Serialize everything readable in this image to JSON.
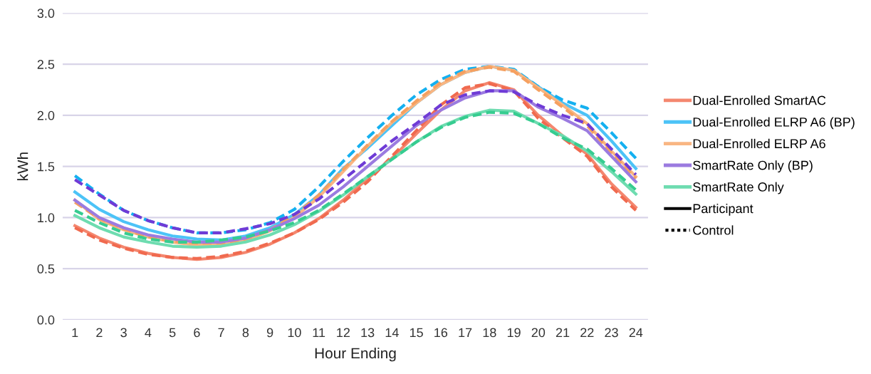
{
  "chart_data": {
    "type": "line",
    "xlabel": "Hour Ending",
    "ylabel": "kWh",
    "categories": [
      "1",
      "2",
      "3",
      "4",
      "5",
      "6",
      "7",
      "8",
      "9",
      "10",
      "11",
      "12",
      "13",
      "14",
      "15",
      "16",
      "17",
      "18",
      "19",
      "20",
      "21",
      "22",
      "23",
      "24"
    ],
    "ylim": [
      0,
      3
    ],
    "yticks": [
      {
        "value": 0,
        "label": "0.0"
      },
      {
        "value": 0.5,
        "label": "0.5"
      },
      {
        "value": 1,
        "label": "1.0"
      },
      {
        "value": 1.5,
        "label": "1.5"
      },
      {
        "value": 2,
        "label": "2.0"
      },
      {
        "value": 2.5,
        "label": "2.5"
      },
      {
        "value": 3,
        "label": "3.0"
      }
    ],
    "grid": "y",
    "legend": "right",
    "marker": "none",
    "series": [
      {
        "name": "Dual-Enrolled SmartAC",
        "color": "#f4876f",
        "line_style": "solid",
        "values": [
          0.92,
          0.8,
          0.71,
          0.65,
          0.61,
          0.59,
          0.61,
          0.66,
          0.74,
          0.85,
          0.99,
          1.17,
          1.38,
          1.58,
          1.82,
          2.05,
          2.24,
          2.32,
          2.25,
          2.0,
          1.8,
          1.62,
          1.33,
          1.1
        ]
      },
      {
        "color": "#f06a4f",
        "line_style": "dashed",
        "values": [
          0.9,
          0.78,
          0.7,
          0.64,
          0.61,
          0.6,
          0.62,
          0.67,
          0.75,
          0.85,
          0.98,
          1.15,
          1.35,
          1.6,
          1.85,
          2.1,
          2.27,
          2.31,
          2.24,
          1.97,
          1.78,
          1.6,
          1.3,
          1.07
        ]
      },
      {
        "name": "Dual-Enrolled ELRP A6 (BP)",
        "color": "#4cc3f7",
        "line_style": "solid",
        "values": [
          1.25,
          1.08,
          0.96,
          0.88,
          0.82,
          0.79,
          0.78,
          0.82,
          0.9,
          1.03,
          1.22,
          1.48,
          1.68,
          1.9,
          2.12,
          2.3,
          2.42,
          2.48,
          2.44,
          2.28,
          2.12,
          2.0,
          1.75,
          1.48
        ]
      },
      {
        "color": "#14b0f0",
        "line_style": "dashed",
        "values": [
          1.41,
          1.23,
          1.07,
          0.97,
          0.9,
          0.85,
          0.85,
          0.88,
          0.95,
          1.08,
          1.3,
          1.55,
          1.78,
          2.0,
          2.2,
          2.35,
          2.45,
          2.48,
          2.45,
          2.28,
          2.15,
          2.07,
          1.83,
          1.58
        ]
      },
      {
        "name": "Dual-Enrolled ELRP A6",
        "color": "#f9b683",
        "line_style": "solid",
        "values": [
          1.17,
          0.98,
          0.88,
          0.81,
          0.76,
          0.73,
          0.73,
          0.78,
          0.87,
          1.0,
          1.2,
          1.45,
          1.7,
          1.93,
          2.12,
          2.3,
          2.42,
          2.48,
          2.44,
          2.27,
          2.1,
          1.92,
          1.65,
          1.4
        ]
      },
      {
        "color": "#f5a060",
        "line_style": "dashed",
        "values": [
          1.15,
          0.99,
          0.89,
          0.81,
          0.77,
          0.75,
          0.75,
          0.79,
          0.88,
          1.02,
          1.22,
          1.47,
          1.71,
          1.94,
          2.14,
          2.32,
          2.43,
          2.47,
          2.43,
          2.25,
          2.08,
          1.9,
          1.63,
          1.38
        ]
      },
      {
        "name": "SmartRate Only (BP)",
        "color": "#9b7be0",
        "line_style": "solid",
        "values": [
          1.17,
          1.0,
          0.9,
          0.83,
          0.79,
          0.76,
          0.76,
          0.8,
          0.88,
          0.99,
          1.12,
          1.3,
          1.5,
          1.7,
          1.9,
          2.05,
          2.17,
          2.24,
          2.24,
          2.08,
          1.97,
          1.85,
          1.6,
          1.35
        ]
      },
      {
        "color": "#6f3bd6",
        "line_style": "dashed",
        "values": [
          1.37,
          1.22,
          1.07,
          0.97,
          0.9,
          0.85,
          0.85,
          0.89,
          0.94,
          1.03,
          1.18,
          1.37,
          1.56,
          1.75,
          1.92,
          2.1,
          2.2,
          2.24,
          2.23,
          2.1,
          2.0,
          1.92,
          1.67,
          1.42
        ]
      },
      {
        "name": "SmartRate Only",
        "color": "#6edcb0",
        "line_style": "solid",
        "values": [
          1.02,
          0.9,
          0.81,
          0.76,
          0.72,
          0.71,
          0.72,
          0.76,
          0.83,
          0.93,
          1.06,
          1.22,
          1.4,
          1.57,
          1.74,
          1.89,
          1.99,
          2.05,
          2.04,
          1.92,
          1.8,
          1.65,
          1.45,
          1.23
        ]
      },
      {
        "color": "#36cc90",
        "line_style": "dashed",
        "values": [
          1.07,
          0.95,
          0.85,
          0.79,
          0.76,
          0.76,
          0.78,
          0.81,
          0.87,
          0.95,
          1.07,
          1.23,
          1.4,
          1.57,
          1.74,
          1.88,
          1.98,
          2.03,
          2.02,
          1.92,
          1.78,
          1.67,
          1.48,
          1.27
        ]
      },
      {
        "name": "Participant",
        "color": "#000000",
        "line_style": "solid",
        "values": [
          null,
          null,
          null,
          null,
          null,
          null,
          null,
          null,
          null,
          null,
          null,
          null,
          null,
          null,
          null,
          null,
          null,
          null,
          null,
          null,
          null,
          null,
          null,
          null
        ]
      },
      {
        "name": "Control",
        "color": "#000000",
        "line_style": "dotted",
        "values": [
          null,
          null,
          null,
          null,
          null,
          null,
          null,
          null,
          null,
          null,
          null,
          null,
          null,
          null,
          null,
          null,
          null,
          null,
          null,
          null,
          null,
          null,
          null,
          null
        ]
      }
    ]
  }
}
